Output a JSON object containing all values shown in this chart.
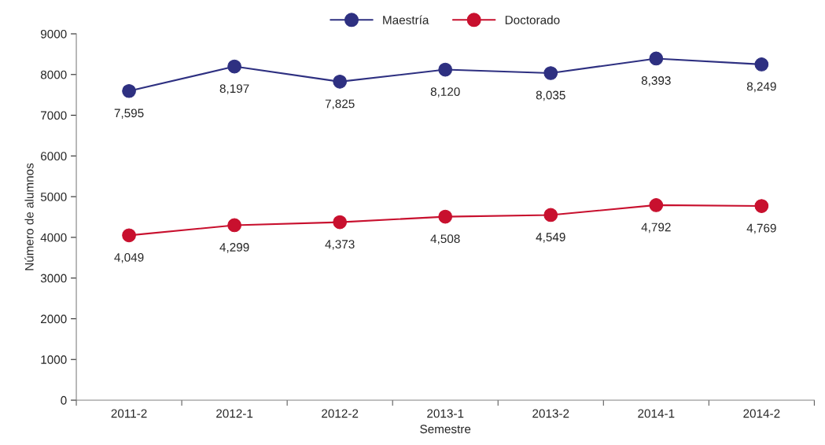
{
  "chart_data": {
    "type": "line",
    "xlabel": "Semestre",
    "ylabel": "Número de alumnos",
    "categories": [
      "2011-2",
      "2012-1",
      "2012-2",
      "2013-1",
      "2013-2",
      "2014-1",
      "2014-2"
    ],
    "series": [
      {
        "name": "Maestría",
        "color": "#2e3081",
        "values": [
          7595,
          8197,
          7825,
          8120,
          8035,
          8393,
          8249
        ],
        "value_labels": [
          "7,595",
          "8,197",
          "7,825",
          "8,120",
          "8,035",
          "8,393",
          "8,249"
        ]
      },
      {
        "name": "Doctorado",
        "color": "#c8102e",
        "values": [
          4049,
          4299,
          4373,
          4508,
          4549,
          4792,
          4769
        ],
        "value_labels": [
          "4,049",
          "4,299",
          "4,373",
          "4,508",
          "4,549",
          "4,792",
          "4,769"
        ]
      }
    ],
    "ylim": [
      0,
      9000
    ],
    "yticks": [
      0,
      1000,
      2000,
      3000,
      4000,
      5000,
      6000,
      7000,
      8000,
      9000
    ],
    "grid": false,
    "legend": "top",
    "marker": "circle",
    "line_style": "solid"
  }
}
